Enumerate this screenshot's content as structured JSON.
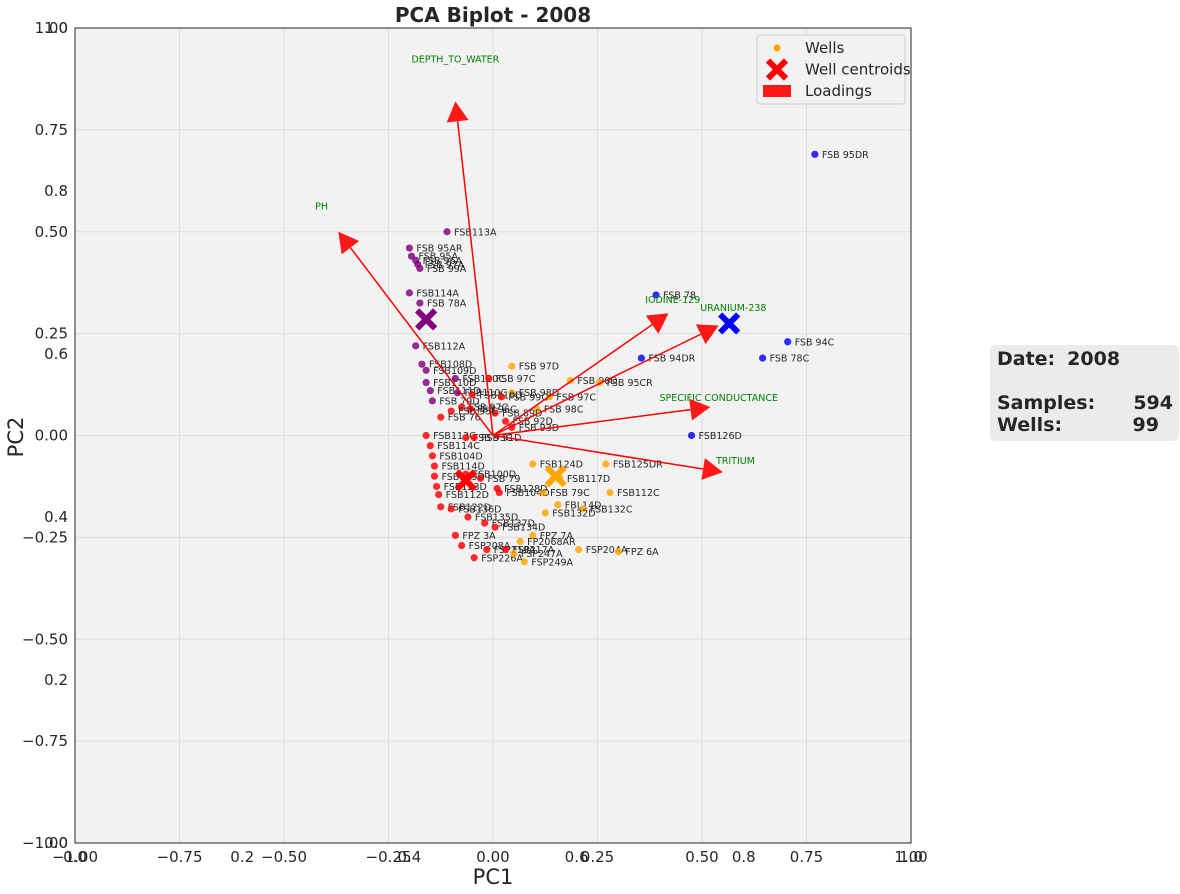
{
  "chart_data": {
    "type": "scatter",
    "title": "PCA Biplot - 2008",
    "xlabel": "PC1",
    "ylabel": "PC2",
    "xlim": [
      -1.0,
      1.0
    ],
    "ylim": [
      -1.0,
      1.0
    ],
    "grid": true,
    "legend_position": "top-right",
    "x_ticks": [
      {
        "v": -1.0,
        "label": "−1.00"
      },
      {
        "v": -0.75,
        "label": "−0.75"
      },
      {
        "v": -0.5,
        "label": "−0.50"
      },
      {
        "v": -0.25,
        "label": "−0.25"
      },
      {
        "v": 0.0,
        "label": "0.00"
      },
      {
        "v": 0.25,
        "label": "0.25"
      },
      {
        "v": 0.5,
        "label": "0.50"
      },
      {
        "v": 0.75,
        "label": "0.75"
      },
      {
        "v": 1.0,
        "label": "1.00"
      }
    ],
    "y_ticks": [
      {
        "v": -1.0,
        "label": "−1.00"
      },
      {
        "v": -0.75,
        "label": "−0.75"
      },
      {
        "v": -0.5,
        "label": "−0.50"
      },
      {
        "v": -0.25,
        "label": "−0.25"
      },
      {
        "v": 0.0,
        "label": "0.00"
      },
      {
        "v": 0.25,
        "label": "0.25"
      },
      {
        "v": 0.5,
        "label": "0.50"
      },
      {
        "v": 0.75,
        "label": "0.75"
      },
      {
        "v": 1.0,
        "label": "1.00"
      }
    ],
    "ghost_x_ticks": [
      {
        "v": -1.0,
        "label": "0.0"
      },
      {
        "v": -0.6,
        "label": "0.2"
      },
      {
        "v": -0.2,
        "label": "0.4"
      },
      {
        "v": 0.2,
        "label": "0.6"
      },
      {
        "v": 0.6,
        "label": "0.8"
      },
      {
        "v": 1.0,
        "label": "1.0"
      }
    ],
    "ghost_y_ticks": [
      {
        "v": -1.0,
        "label": "0.0"
      },
      {
        "v": -0.6,
        "label": "0.2"
      },
      {
        "v": -0.2,
        "label": "0.4"
      },
      {
        "v": 0.2,
        "label": "0.6"
      },
      {
        "v": 0.6,
        "label": "0.8"
      },
      {
        "v": 1.0,
        "label": "1.0"
      }
    ],
    "colors": {
      "purple": "#800080",
      "red": "#ff0000",
      "orange": "#ffa500",
      "blue": "#0000ff",
      "loading": "#ff0000",
      "loading_label": "#008000"
    },
    "legend": [
      {
        "label": "Wells",
        "marker": "dot",
        "color": "#ffa500"
      },
      {
        "label": "Well centroids",
        "marker": "x",
        "color": "#ff0000"
      },
      {
        "label": "Loadings",
        "marker": "rect",
        "color": "#ff0000"
      }
    ],
    "centroids": [
      {
        "x": -0.16,
        "y": 0.285,
        "color": "purple"
      },
      {
        "x": -0.065,
        "y": -0.11,
        "color": "red"
      },
      {
        "x": 0.15,
        "y": -0.1,
        "color": "orange"
      },
      {
        "x": 0.565,
        "y": 0.275,
        "color": "blue"
      }
    ],
    "loadings": [
      {
        "name": "DEPTH_TO_WATER",
        "x": -0.09,
        "y": 0.82,
        "lx": -0.09,
        "ly": 0.915
      },
      {
        "name": "PH",
        "x": -0.37,
        "y": 0.5,
        "lx": -0.41,
        "ly": 0.555
      },
      {
        "name": "IODINE-129",
        "x": 0.42,
        "y": 0.3,
        "lx": 0.43,
        "ly": 0.325
      },
      {
        "name": "URANIUM-238",
        "x": 0.54,
        "y": 0.27,
        "lx": 0.575,
        "ly": 0.305
      },
      {
        "name": "SPECIFIC CONDUCTANCE",
        "x": 0.52,
        "y": 0.07,
        "lx": 0.54,
        "ly": 0.085
      },
      {
        "name": "TRITIUM",
        "x": 0.55,
        "y": -0.09,
        "lx": 0.58,
        "ly": -0.07
      }
    ],
    "points": [
      {
        "x": -0.11,
        "y": 0.5,
        "label": "FSB113A",
        "color": "purple"
      },
      {
        "x": -0.2,
        "y": 0.46,
        "label": "FSB 95AR",
        "color": "purple"
      },
      {
        "x": -0.195,
        "y": 0.44,
        "label": "FSB 95A",
        "color": "purple"
      },
      {
        "x": -0.185,
        "y": 0.43,
        "label": "FSB 96A",
        "color": "purple"
      },
      {
        "x": -0.18,
        "y": 0.42,
        "label": "FSB 97A",
        "color": "purple"
      },
      {
        "x": -0.175,
        "y": 0.41,
        "label": "FSB 99A",
        "color": "purple"
      },
      {
        "x": -0.2,
        "y": 0.35,
        "label": "FSB114A",
        "color": "purple"
      },
      {
        "x": -0.175,
        "y": 0.325,
        "label": "FSB 78A",
        "color": "purple"
      },
      {
        "x": -0.185,
        "y": 0.22,
        "label": "FSB112A",
        "color": "purple"
      },
      {
        "x": -0.17,
        "y": 0.175,
        "label": "FSB108D",
        "color": "purple"
      },
      {
        "x": -0.16,
        "y": 0.16,
        "label": "FSB109D",
        "color": "purple"
      },
      {
        "x": -0.16,
        "y": 0.13,
        "label": "FSB110D",
        "color": "purple"
      },
      {
        "x": -0.15,
        "y": 0.11,
        "label": "FSB111D",
        "color": "purple"
      },
      {
        "x": -0.145,
        "y": 0.085,
        "label": "FSB 79D",
        "color": "purple"
      },
      {
        "x": -0.09,
        "y": 0.14,
        "label": "FSB120C",
        "color": "purple"
      },
      {
        "x": -0.085,
        "y": 0.105,
        "label": "FSB110C",
        "color": "purple"
      },
      {
        "x": 0.045,
        "y": 0.17,
        "label": "FSB 97D",
        "color": "orange"
      },
      {
        "x": 0.185,
        "y": 0.135,
        "label": "FSB 90D",
        "color": "orange"
      },
      {
        "x": 0.255,
        "y": 0.13,
        "label": "FSB 95CR",
        "color": "orange"
      },
      {
        "x": 0.135,
        "y": 0.095,
        "label": "FSB 97C",
        "color": "orange"
      },
      {
        "x": 0.105,
        "y": 0.065,
        "label": "FSB 98C",
        "color": "orange"
      },
      {
        "x": 0.045,
        "y": 0.105,
        "label": "FSB 98D",
        "color": "orange"
      },
      {
        "x": -0.01,
        "y": 0.14,
        "label": "FSB 97C",
        "color": "red"
      },
      {
        "x": -0.05,
        "y": 0.1,
        "label": "FSB110D",
        "color": "red"
      },
      {
        "x": 0.02,
        "y": 0.095,
        "label": "FSB 99C",
        "color": "red"
      },
      {
        "x": -0.075,
        "y": 0.07,
        "label": "FSB 97C",
        "color": "red"
      },
      {
        "x": 0.005,
        "y": 0.055,
        "label": "FSB 89D",
        "color": "red"
      },
      {
        "x": -0.055,
        "y": 0.065,
        "label": "FSB 96C",
        "color": "red"
      },
      {
        "x": 0.03,
        "y": 0.035,
        "label": "FSB 92D",
        "color": "red"
      },
      {
        "x": 0.045,
        "y": 0.02,
        "label": "FSB 93D",
        "color": "red"
      },
      {
        "x": -0.1,
        "y": 0.06,
        "label": "FSB 95C",
        "color": "red"
      },
      {
        "x": -0.125,
        "y": 0.045,
        "label": "FSB 76",
        "color": "red"
      },
      {
        "x": -0.16,
        "y": 0.0,
        "label": "FSB113C",
        "color": "red"
      },
      {
        "x": -0.065,
        "y": -0.005,
        "label": "FSB 93C",
        "color": "red"
      },
      {
        "x": -0.045,
        "y": -0.005,
        "label": "FSB 91D",
        "color": "red"
      },
      {
        "x": -0.15,
        "y": -0.025,
        "label": "FSB114C",
        "color": "red"
      },
      {
        "x": -0.145,
        "y": -0.05,
        "label": "FSB104D",
        "color": "red"
      },
      {
        "x": -0.14,
        "y": -0.075,
        "label": "FSB114D",
        "color": "red"
      },
      {
        "x": -0.14,
        "y": -0.1,
        "label": "FSB119D",
        "color": "red"
      },
      {
        "x": -0.135,
        "y": -0.125,
        "label": "FSB123D",
        "color": "red"
      },
      {
        "x": -0.13,
        "y": -0.145,
        "label": "FSB112D",
        "color": "red"
      },
      {
        "x": -0.125,
        "y": -0.175,
        "label": "FSB122D",
        "color": "red"
      },
      {
        "x": -0.065,
        "y": -0.095,
        "label": "FSB100D",
        "color": "red"
      },
      {
        "x": -0.03,
        "y": -0.105,
        "label": "FSB 79",
        "color": "red"
      },
      {
        "x": 0.01,
        "y": -0.13,
        "label": "FSB128D",
        "color": "red"
      },
      {
        "x": 0.015,
        "y": -0.14,
        "label": "FSB104D",
        "color": "red"
      },
      {
        "x": -0.1,
        "y": -0.18,
        "label": "FSB136D",
        "color": "red"
      },
      {
        "x": -0.06,
        "y": -0.2,
        "label": "FSB135D",
        "color": "red"
      },
      {
        "x": -0.02,
        "y": -0.215,
        "label": "FSB137D",
        "color": "red"
      },
      {
        "x": 0.005,
        "y": -0.225,
        "label": "FSB134D",
        "color": "red"
      },
      {
        "x": -0.09,
        "y": -0.245,
        "label": "FPZ 3A",
        "color": "red"
      },
      {
        "x": -0.075,
        "y": -0.27,
        "label": "FSP208A",
        "color": "red"
      },
      {
        "x": -0.045,
        "y": -0.3,
        "label": "FSP226A",
        "color": "red"
      },
      {
        "x": -0.015,
        "y": -0.28,
        "label": "FSP219A",
        "color": "red"
      },
      {
        "x": 0.03,
        "y": -0.28,
        "label": "FSP217A",
        "color": "red"
      },
      {
        "x": 0.095,
        "y": -0.07,
        "label": "FSB124D",
        "color": "orange"
      },
      {
        "x": 0.27,
        "y": -0.07,
        "label": "FSB125DR",
        "color": "orange"
      },
      {
        "x": 0.16,
        "y": -0.105,
        "label": "FSB117D",
        "color": "orange"
      },
      {
        "x": 0.12,
        "y": -0.14,
        "label": "FSB 79C",
        "color": "orange"
      },
      {
        "x": 0.28,
        "y": -0.14,
        "label": "FSB112C",
        "color": "orange"
      },
      {
        "x": 0.155,
        "y": -0.17,
        "label": "FBL14D",
        "color": "orange"
      },
      {
        "x": 0.215,
        "y": -0.18,
        "label": "FSB132C",
        "color": "orange"
      },
      {
        "x": 0.125,
        "y": -0.19,
        "label": "FSB132D",
        "color": "orange"
      },
      {
        "x": 0.095,
        "y": -0.245,
        "label": "FPZ 7A",
        "color": "orange"
      },
      {
        "x": 0.065,
        "y": -0.26,
        "label": "FP2068AR",
        "color": "orange"
      },
      {
        "x": 0.205,
        "y": -0.28,
        "label": "FSP204A",
        "color": "orange"
      },
      {
        "x": 0.3,
        "y": -0.285,
        "label": "FPZ 6A",
        "color": "orange"
      },
      {
        "x": 0.05,
        "y": -0.29,
        "label": "FSP247A",
        "color": "orange"
      },
      {
        "x": 0.075,
        "y": -0.31,
        "label": "FSP249A",
        "color": "orange"
      },
      {
        "x": 0.77,
        "y": 0.69,
        "label": "FSB 95DR",
        "color": "blue"
      },
      {
        "x": 0.39,
        "y": 0.345,
        "label": "FSB 78",
        "color": "blue"
      },
      {
        "x": 0.355,
        "y": 0.19,
        "label": "FSB 94DR",
        "color": "blue"
      },
      {
        "x": 0.705,
        "y": 0.23,
        "label": "FSB 94C",
        "color": "blue"
      },
      {
        "x": 0.645,
        "y": 0.19,
        "label": "FSB 78C",
        "color": "blue"
      },
      {
        "x": 0.475,
        "y": 0.0,
        "label": "FSB126D",
        "color": "blue"
      }
    ]
  },
  "info_box": {
    "date_label": "Date:",
    "date_value": "2008",
    "samples_label": "Samples:",
    "samples_value": "594",
    "wells_label": "Wells:",
    "wells_value": "99"
  }
}
